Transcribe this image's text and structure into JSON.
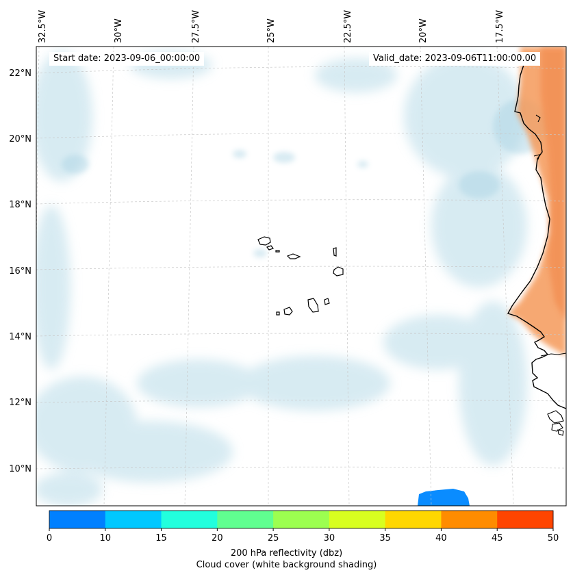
{
  "map": {
    "start_date": "Start date: 2023-09-06_00:00:00",
    "valid_date": "Valid_date: 2023-09-06T11:00:00.00",
    "lon_labels": [
      "32.5°W",
      "30°W",
      "27.5°W",
      "25°W",
      "22.5°W",
      "20°W",
      "17.5°W"
    ],
    "lat_labels": [
      "22°N",
      "20°N",
      "18°N",
      "16°N",
      "14°N",
      "12°N",
      "10°N"
    ],
    "features": [
      "Cape Verde islands",
      "West African coastline"
    ]
  },
  "colorbar": {
    "ticks": [
      "0",
      "10",
      "15",
      "20",
      "25",
      "30",
      "35",
      "40",
      "45",
      "50"
    ],
    "colors": [
      "#0080ff",
      "#00c8ff",
      "#22ffdd",
      "#60ff90",
      "#9cff50",
      "#d8ff20",
      "#ffd700",
      "#ff8c00",
      "#ff4500"
    ],
    "label_line1": "200 hPa reflectivity (dbz)",
    "label_line2": "Cloud cover (white background shading)"
  },
  "colors": {
    "cloud": "#b8dbe8",
    "reflectivity_low": "#0080ff",
    "land_warm": "#f59a5a",
    "coast": "#000000"
  }
}
